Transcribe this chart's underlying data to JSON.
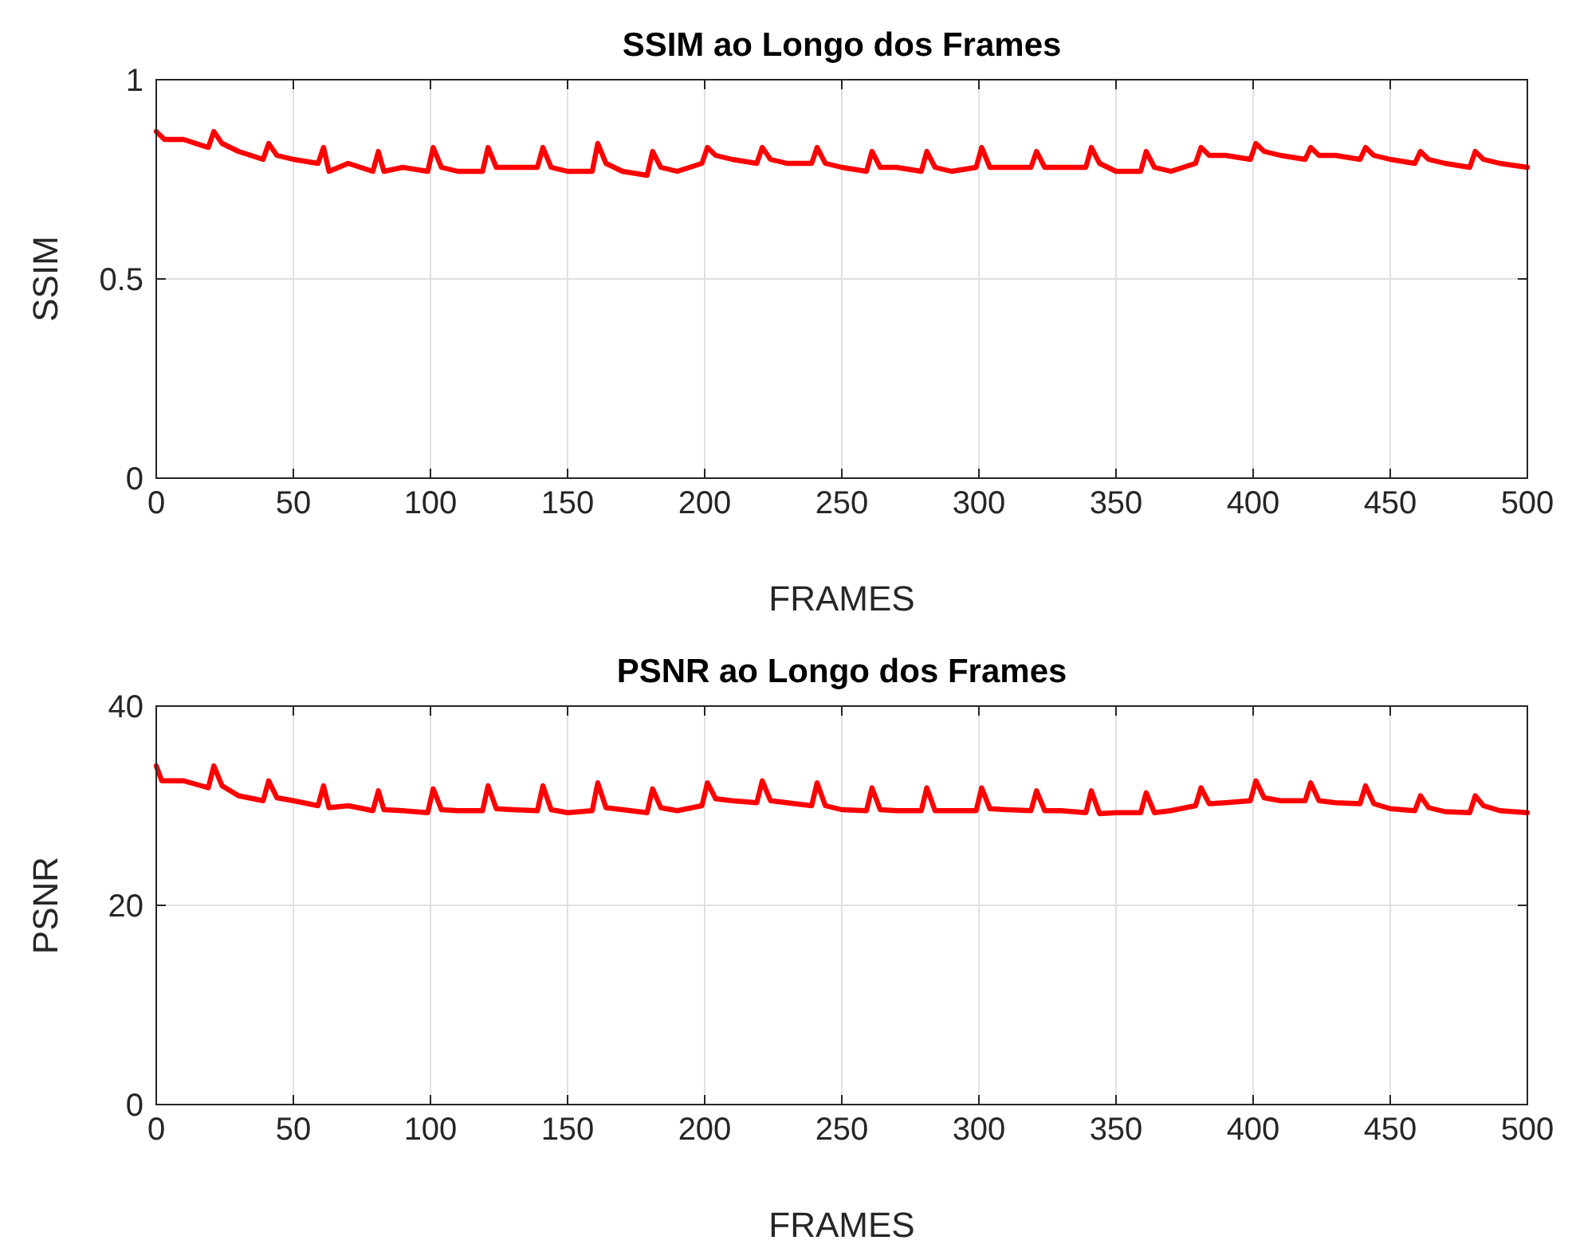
{
  "chart_data": [
    {
      "type": "line",
      "title": "SSIM ao Longo dos Frames",
      "xlabel": "FRAMES",
      "ylabel": "SSIM",
      "xlim": [
        0,
        500
      ],
      "ylim": [
        0,
        1
      ],
      "xticks": [
        0,
        50,
        100,
        150,
        200,
        250,
        300,
        350,
        400,
        450,
        500
      ],
      "yticks": [
        0,
        0.5,
        1
      ],
      "grid": true,
      "line_style": "solid",
      "marker": "none",
      "series": [
        {
          "color": "#ff0000",
          "x": [
            0,
            3,
            10,
            19,
            21,
            24,
            30,
            39,
            41,
            44,
            50,
            59,
            61,
            63,
            70,
            79,
            81,
            83,
            90,
            99,
            101,
            104,
            110,
            119,
            121,
            124,
            130,
            139,
            141,
            144,
            150,
            159,
            161,
            164,
            170,
            179,
            181,
            184,
            190,
            199,
            201,
            204,
            210,
            219,
            221,
            224,
            230,
            239,
            241,
            244,
            250,
            259,
            261,
            264,
            270,
            279,
            281,
            284,
            290,
            299,
            301,
            304,
            310,
            319,
            321,
            324,
            330,
            339,
            341,
            344,
            350,
            359,
            361,
            364,
            370,
            379,
            381,
            384,
            390,
            399,
            401,
            404,
            410,
            419,
            421,
            424,
            430,
            439,
            441,
            444,
            450,
            459,
            461,
            464,
            470,
            479,
            481,
            484,
            490,
            500
          ],
          "values": [
            0.87,
            0.85,
            0.85,
            0.83,
            0.87,
            0.84,
            0.82,
            0.8,
            0.84,
            0.81,
            0.8,
            0.79,
            0.83,
            0.77,
            0.79,
            0.77,
            0.82,
            0.77,
            0.78,
            0.77,
            0.83,
            0.78,
            0.77,
            0.77,
            0.83,
            0.78,
            0.78,
            0.78,
            0.83,
            0.78,
            0.77,
            0.77,
            0.84,
            0.79,
            0.77,
            0.76,
            0.82,
            0.78,
            0.77,
            0.79,
            0.83,
            0.81,
            0.8,
            0.79,
            0.83,
            0.8,
            0.79,
            0.79,
            0.83,
            0.79,
            0.78,
            0.77,
            0.82,
            0.78,
            0.78,
            0.77,
            0.82,
            0.78,
            0.77,
            0.78,
            0.83,
            0.78,
            0.78,
            0.78,
            0.82,
            0.78,
            0.78,
            0.78,
            0.83,
            0.79,
            0.77,
            0.77,
            0.82,
            0.78,
            0.77,
            0.79,
            0.83,
            0.81,
            0.81,
            0.8,
            0.84,
            0.82,
            0.81,
            0.8,
            0.83,
            0.81,
            0.81,
            0.8,
            0.83,
            0.81,
            0.8,
            0.79,
            0.82,
            0.8,
            0.79,
            0.78,
            0.82,
            0.8,
            0.79,
            0.78
          ]
        }
      ]
    },
    {
      "type": "line",
      "title": "PSNR ao Longo dos Frames",
      "xlabel": "FRAMES",
      "ylabel": "PSNR",
      "xlim": [
        0,
        500
      ],
      "ylim": [
        0,
        40
      ],
      "xticks": [
        0,
        50,
        100,
        150,
        200,
        250,
        300,
        350,
        400,
        450,
        500
      ],
      "yticks": [
        0,
        20,
        40
      ],
      "grid": true,
      "line_style": "solid",
      "marker": "none",
      "series": [
        {
          "color": "#ff0000",
          "x": [
            0,
            2,
            10,
            19,
            21,
            24,
            30,
            39,
            41,
            44,
            50,
            59,
            61,
            63,
            70,
            79,
            81,
            83,
            90,
            99,
            101,
            104,
            110,
            119,
            121,
            124,
            130,
            139,
            141,
            144,
            150,
            159,
            161,
            164,
            170,
            179,
            181,
            184,
            190,
            199,
            201,
            204,
            210,
            219,
            221,
            224,
            230,
            239,
            241,
            244,
            250,
            259,
            261,
            264,
            270,
            279,
            281,
            284,
            290,
            299,
            301,
            304,
            310,
            319,
            321,
            324,
            330,
            339,
            341,
            344,
            350,
            359,
            361,
            364,
            370,
            379,
            381,
            384,
            390,
            399,
            401,
            404,
            410,
            419,
            421,
            424,
            430,
            439,
            441,
            444,
            450,
            459,
            461,
            464,
            470,
            479,
            481,
            484,
            490,
            500
          ],
          "values": [
            34,
            32.5,
            32.5,
            31.8,
            34,
            32,
            31,
            30.5,
            32.5,
            30.8,
            30.5,
            30,
            32,
            29.8,
            30,
            29.5,
            31.5,
            29.6,
            29.5,
            29.3,
            31.7,
            29.6,
            29.5,
            29.5,
            32,
            29.7,
            29.6,
            29.5,
            32,
            29.6,
            29.3,
            29.5,
            32.3,
            29.8,
            29.6,
            29.3,
            31.7,
            29.8,
            29.5,
            30,
            32.3,
            30.7,
            30.5,
            30.3,
            32.5,
            30.5,
            30.3,
            30,
            32.3,
            30,
            29.6,
            29.5,
            31.8,
            29.6,
            29.5,
            29.5,
            31.8,
            29.5,
            29.5,
            29.5,
            31.8,
            29.7,
            29.6,
            29.5,
            31.5,
            29.5,
            29.5,
            29.3,
            31.5,
            29.2,
            29.3,
            29.3,
            31.3,
            29.3,
            29.5,
            30,
            31.8,
            30.2,
            30.3,
            30.5,
            32.5,
            30.8,
            30.5,
            30.5,
            32.3,
            30.5,
            30.3,
            30.2,
            32,
            30.2,
            29.7,
            29.5,
            31,
            29.8,
            29.4,
            29.3,
            31,
            30,
            29.5,
            29.3
          ]
        }
      ]
    }
  ]
}
